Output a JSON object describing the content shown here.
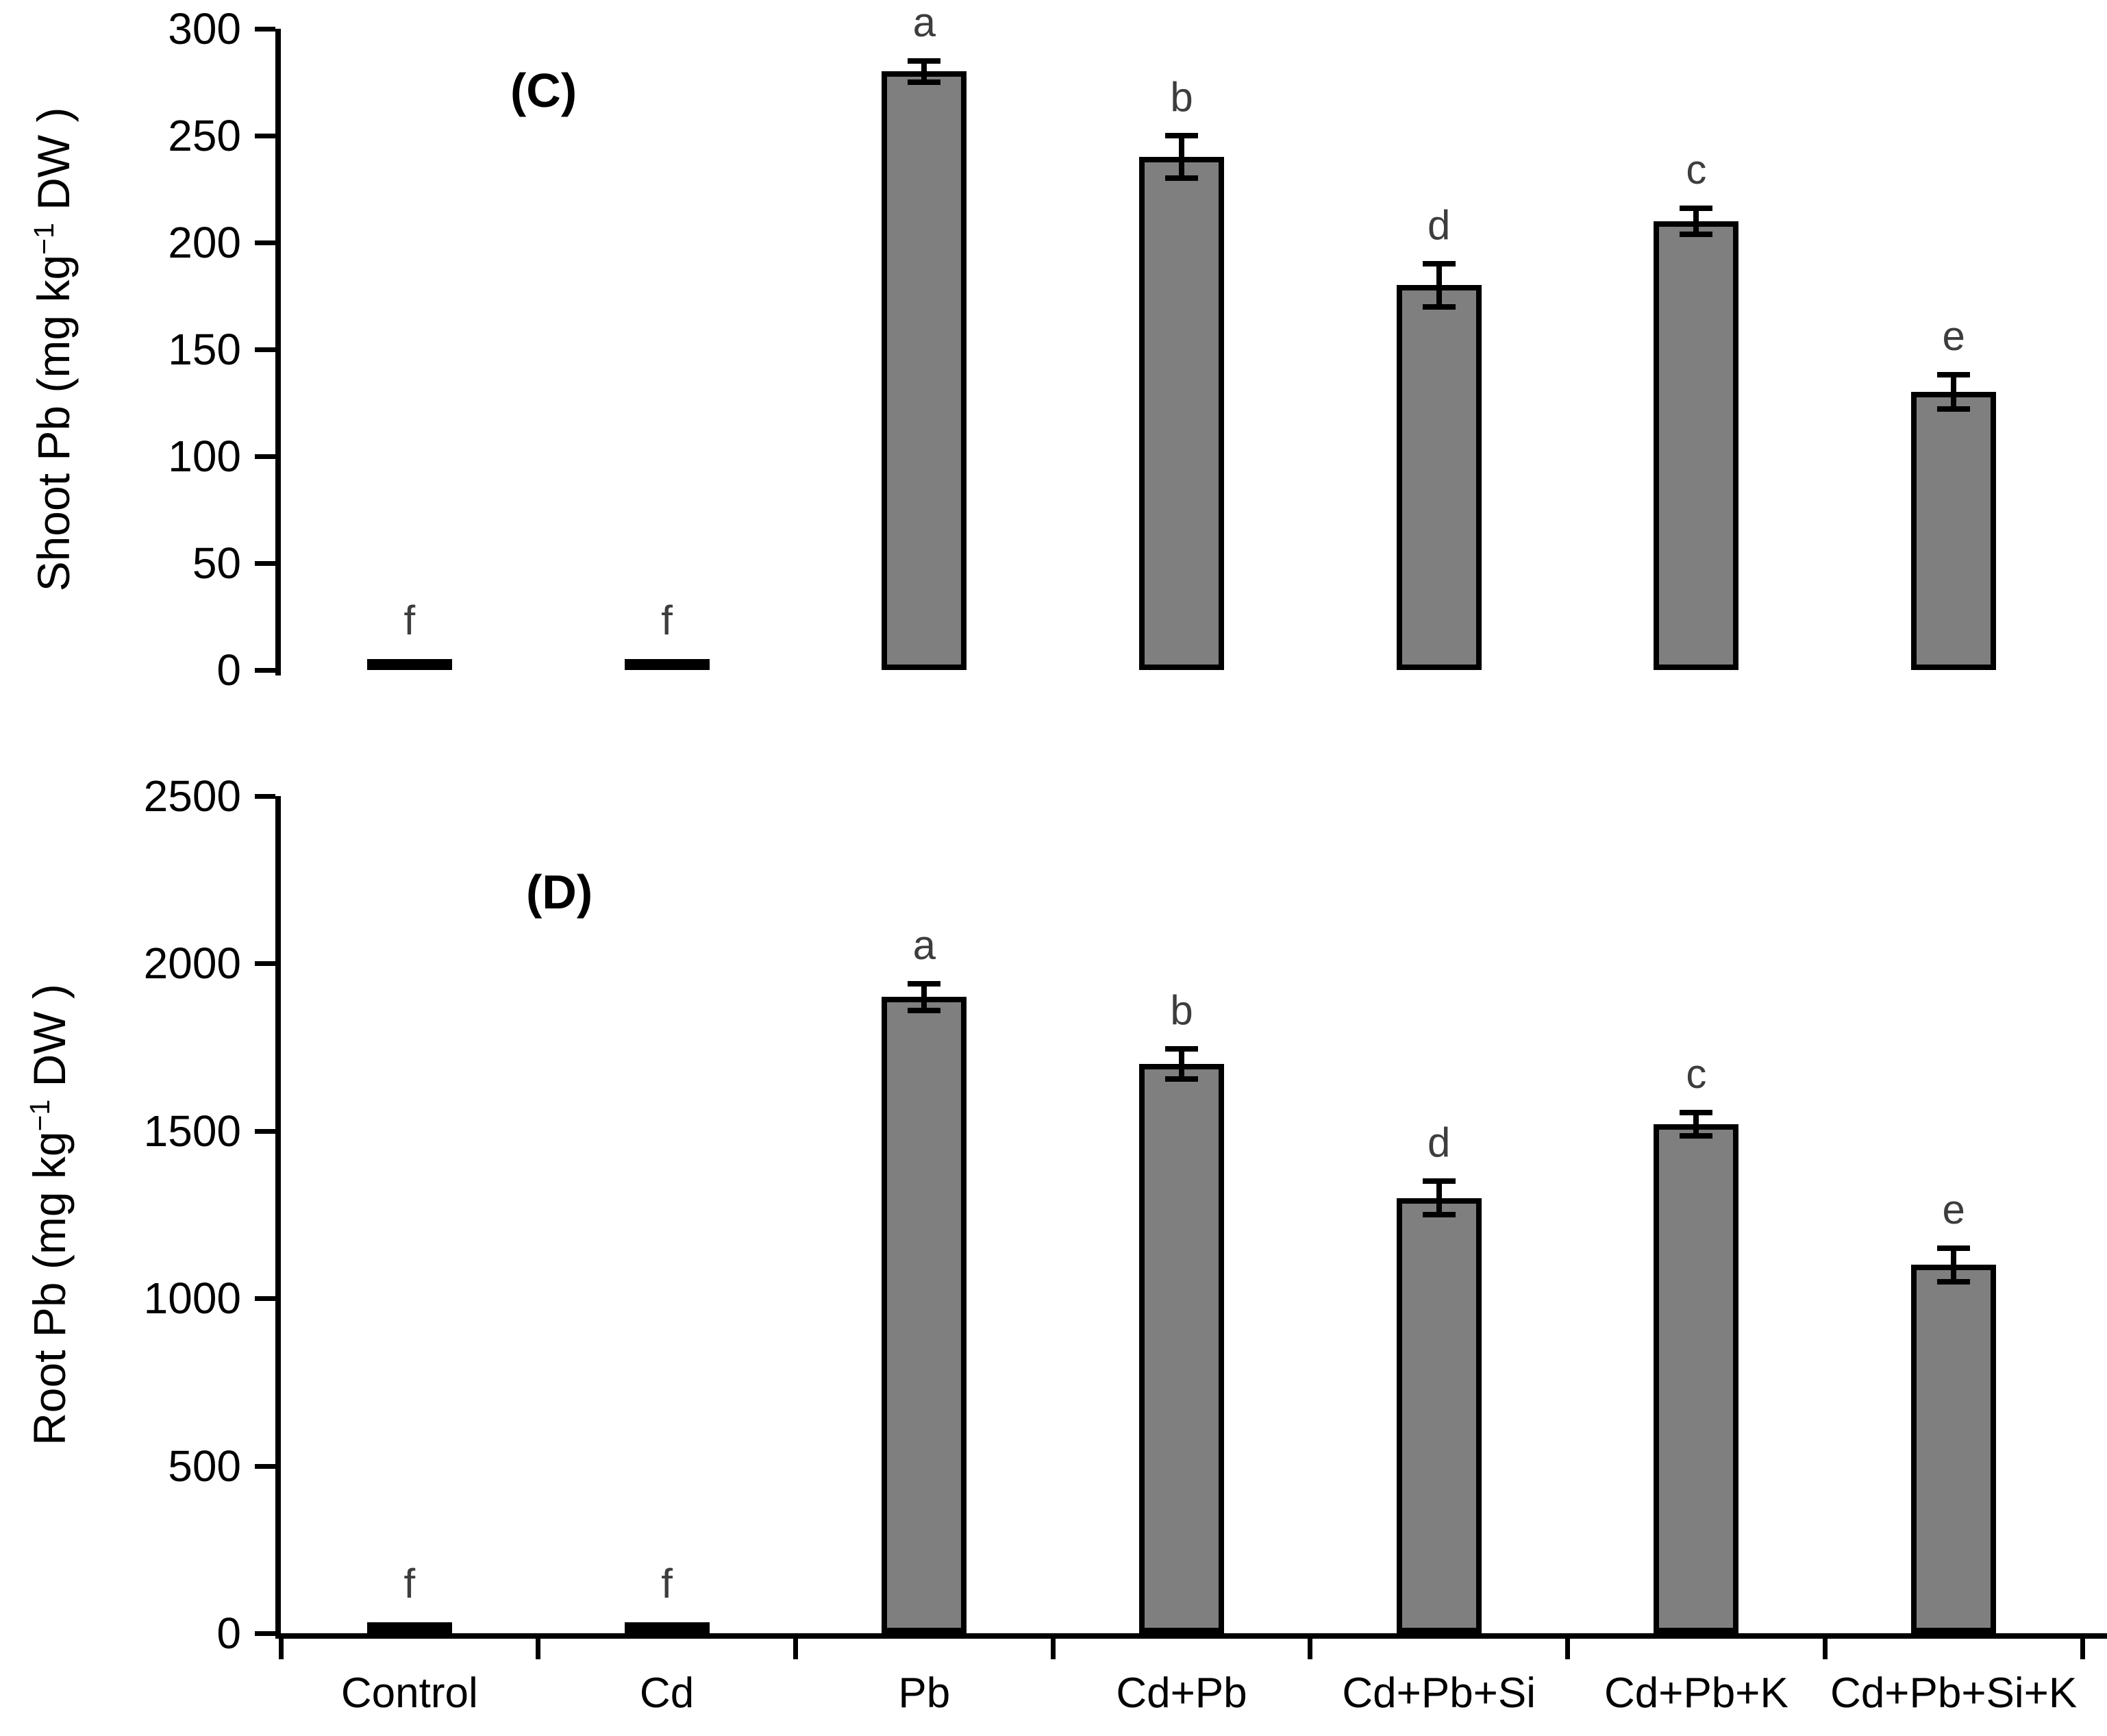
{
  "figure_title": "Shoot and Root Pb concentration bar charts",
  "colors": {
    "bar_fill": "#7f7f7f",
    "bar_border": "#000000",
    "axis": "#000000",
    "sig_letter": "#3d3d3d",
    "background": "#ffffff"
  },
  "chart_data": [
    {
      "type": "bar",
      "panel": "(C)",
      "categories": [
        "Control",
        "Cd",
        "Pb",
        "Cd+Pb",
        "Cd+Pb+Si",
        "Cd+Pb+K",
        "Cd+Pb+Si+K"
      ],
      "values": [
        2,
        3,
        280,
        240,
        180,
        210,
        130
      ],
      "errors": [
        0,
        0,
        5,
        10,
        10,
        6,
        8
      ],
      "sig_letters": [
        "f",
        "f",
        "a",
        "b",
        "d",
        "c",
        "e"
      ],
      "ylabel": "Shoot Pb (mg kg−1 DW )",
      "ylabel_parts": {
        "prefix": "Shoot Pb (mg kg",
        "sup": "−1",
        "suffix": " DW )"
      },
      "ylim": [
        0,
        300
      ],
      "ytick_step": 50,
      "yticks": [
        0,
        50,
        100,
        150,
        200,
        250,
        300
      ],
      "grid": false,
      "legend": false,
      "bar_color": "#7f7f7f"
    },
    {
      "type": "bar",
      "panel": "(D)",
      "categories": [
        "Control",
        "Cd",
        "Pb",
        "Cd+Pb",
        "Cd+Pb+Si",
        "Cd+Pb+K",
        "Cd+Pb+Si+K"
      ],
      "values": [
        5,
        8,
        1900,
        1700,
        1300,
        1520,
        1100
      ],
      "errors": [
        0,
        0,
        40,
        45,
        50,
        35,
        50
      ],
      "sig_letters": [
        "f",
        "f",
        "a",
        "b",
        "d",
        "c",
        "e"
      ],
      "ylabel": "Root Pb (mg kg−1 DW )",
      "ylabel_parts": {
        "prefix": "Root Pb (mg kg",
        "sup": "−1",
        "suffix": " DW )"
      },
      "ylim": [
        0,
        2500
      ],
      "ytick_step": 500,
      "yticks": [
        0,
        500,
        1000,
        1500,
        2000,
        2500
      ],
      "grid": false,
      "legend": false,
      "bar_color": "#7f7f7f"
    }
  ],
  "x_axis": {
    "categories": [
      "Control",
      "Cd",
      "Pb",
      "Cd+Pb",
      "Cd+Pb+Si",
      "Cd+Pb+K",
      "Cd+Pb+Si+K"
    ]
  }
}
